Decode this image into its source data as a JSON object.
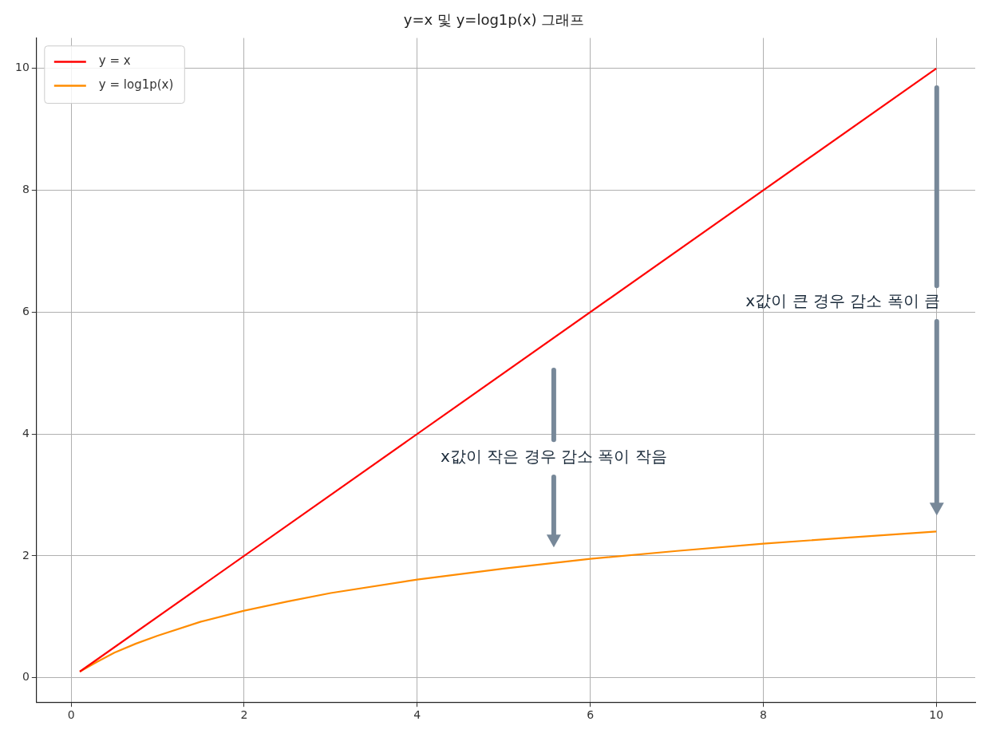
{
  "chart_data": {
    "type": "line",
    "title": "y=x 및 y=log1p(x) 그래프",
    "series": [
      {
        "name": "y = x",
        "color": "#ff0000",
        "x": [
          0.1,
          10
        ],
        "values": [
          0.1,
          10
        ]
      },
      {
        "name": "y = log1p(x)",
        "color": "#ff8c00",
        "x": [
          0.1,
          0.3,
          0.5,
          0.75,
          1,
          1.5,
          2,
          2.5,
          3,
          4,
          5,
          6,
          7,
          8,
          9,
          10
        ],
        "values": [
          0.1,
          0.26,
          0.41,
          0.56,
          0.69,
          0.92,
          1.1,
          1.25,
          1.39,
          1.61,
          1.79,
          1.95,
          2.08,
          2.2,
          2.3,
          2.4
        ]
      }
    ],
    "annotations": [
      "x값이 작은 경우 감소 폭이 작음",
      "x값이 큰 경우 감소 폭이 큼"
    ],
    "xlim": [
      -0.4,
      10.45
    ],
    "xticks": [
      0,
      2,
      4,
      6,
      8,
      10
    ],
    "ylim": [
      -0.4,
      10.5
    ],
    "yticks": [
      0,
      2,
      4,
      6,
      8,
      10
    ],
    "grid": true,
    "legend": "top left",
    "marker": "none",
    "line_style": "solid"
  }
}
